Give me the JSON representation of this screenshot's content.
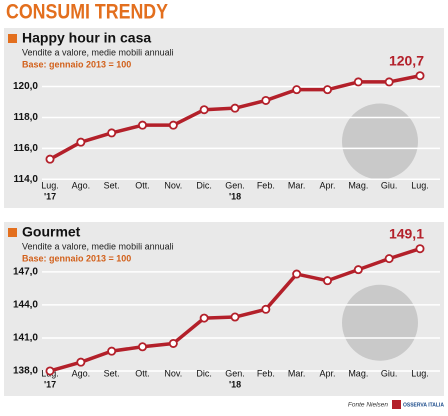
{
  "header": {
    "title": "CONSUMI TRENDY"
  },
  "chart_data": [
    {
      "type": "line",
      "title": "Happy hour in casa",
      "subtitle": "Vendite a valore, medie mobili annuali",
      "note": "Base: gennaio 2013 = 100",
      "categories": [
        "Lug.",
        "Ago.",
        "Set.",
        "Ott.",
        "Nov.",
        "Dic.",
        "Gen.",
        "Feb.",
        "Mar.",
        "Apr.",
        "Mag.",
        "Giu.",
        "Lug."
      ],
      "category_years": [
        "'17",
        null,
        null,
        null,
        null,
        null,
        "'18",
        null,
        null,
        null,
        null,
        null,
        null
      ],
      "series": [
        {
          "name": "Happy hour in casa",
          "color": "#b3202a",
          "values": [
            115.3,
            116.4,
            117.0,
            117.5,
            117.5,
            118.5,
            118.6,
            119.1,
            119.8,
            119.8,
            120.3,
            120.3,
            120.7
          ],
          "value_labels": [
            null,
            null,
            null,
            null,
            null,
            null,
            null,
            null,
            null,
            null,
            null,
            null,
            "120,7"
          ]
        }
      ],
      "ylim": [
        113.5,
        121.2
      ],
      "yticks": [
        {
          "value": 114,
          "label": "114,0"
        },
        {
          "value": 116,
          "label": "116,0"
        },
        {
          "value": 118,
          "label": "118,0"
        },
        {
          "value": 120,
          "label": "120,0"
        }
      ],
      "grid": true
    },
    {
      "type": "line",
      "title": "Gourmet",
      "subtitle": "Vendite a valore, medie mobili annuali",
      "note": "Base: gennaio 2013 = 100",
      "categories": [
        "Lug.",
        "Ago.",
        "Set.",
        "Ott.",
        "Nov.",
        "Dic.",
        "Gen.",
        "Feb.",
        "Mar.",
        "Apr.",
        "Mag.",
        "Giu.",
        "Lug."
      ],
      "category_years": [
        "'17",
        null,
        null,
        null,
        null,
        null,
        "'18",
        null,
        null,
        null,
        null,
        null,
        null
      ],
      "series": [
        {
          "name": "Gourmet",
          "color": "#b3202a",
          "values": [
            138.0,
            138.8,
            139.8,
            140.2,
            140.5,
            142.8,
            142.9,
            143.6,
            146.8,
            146.2,
            147.2,
            148.2,
            149.1
          ],
          "value_labels": [
            null,
            null,
            null,
            null,
            null,
            null,
            null,
            null,
            null,
            null,
            null,
            null,
            "149,1"
          ]
        }
      ],
      "ylim": [
        137.5,
        149.8
      ],
      "yticks": [
        {
          "value": 138,
          "label": "138,0"
        },
        {
          "value": 141,
          "label": "141,0"
        },
        {
          "value": 144,
          "label": "144,0"
        },
        {
          "value": 147,
          "label": "147,0"
        }
      ],
      "grid": true
    }
  ],
  "footer": {
    "source": "Fonte Nielsen",
    "logo": "OSSERVA ITALIA"
  }
}
